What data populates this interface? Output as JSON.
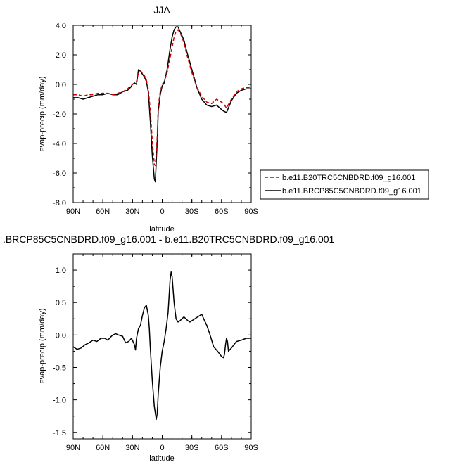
{
  "chart_data": [
    {
      "type": "line",
      "title": "JJA",
      "xlabel": "latitude",
      "ylabel": "evap-precip (mm/day)",
      "xlim": [
        90,
        -90
      ],
      "ylim": [
        -8.0,
        4.0
      ],
      "xticks": [
        90,
        60,
        30,
        0,
        -30,
        -60,
        -90
      ],
      "xtick_labels": [
        "90N",
        "60N",
        "30N",
        "0",
        "30S",
        "60S",
        "90S"
      ],
      "yticks": [
        -8,
        -6,
        -4,
        -2,
        0,
        2,
        4
      ],
      "ytick_labels": [
        "-8.0",
        "-6.0",
        "-4.0",
        "-2.0",
        "0.0",
        "2.0",
        "4.0"
      ],
      "legend_position": "right",
      "series": [
        {
          "name": "b.e11.B20TRC5CNBDRD.f09_g16.001",
          "color": "#cc0000",
          "style": "dashed",
          "x": [
            90,
            85,
            80,
            75,
            70,
            65,
            60,
            55,
            50,
            45,
            40,
            35,
            32,
            30,
            28,
            26,
            24,
            22,
            20,
            18,
            16,
            14,
            12,
            10,
            8,
            7,
            6,
            5,
            4,
            2,
            0,
            -2,
            -5,
            -8,
            -10,
            -12,
            -14,
            -16,
            -18,
            -20,
            -22,
            -25,
            -30,
            -35,
            -40,
            -45,
            -50,
            -55,
            -60,
            -62,
            -65,
            -70,
            -75,
            -80,
            -85,
            -90
          ],
          "y": [
            -0.7,
            -0.7,
            -0.8,
            -0.7,
            -0.7,
            -0.6,
            -0.6,
            -0.6,
            -0.7,
            -0.6,
            -0.5,
            -0.3,
            -0.1,
            0.0,
            0.1,
            0.2,
            0.8,
            0.9,
            0.8,
            0.6,
            0.3,
            -0.3,
            -1.8,
            -3.8,
            -5.4,
            -5.5,
            -4.6,
            -3.5,
            -1.5,
            -0.5,
            0.0,
            0.2,
            0.8,
            1.8,
            2.5,
            3.2,
            3.6,
            3.7,
            3.5,
            3.2,
            2.8,
            2.0,
            0.8,
            -0.2,
            -0.8,
            -1.2,
            -1.3,
            -1.0,
            -1.2,
            -1.3,
            -1.6,
            -1.0,
            -0.5,
            -0.3,
            -0.2,
            -0.2
          ]
        },
        {
          "name": "b.e11.BRCP85C5CNBDRD.f09_g16.001",
          "color": "#000000",
          "style": "solid",
          "x": [
            90,
            85,
            80,
            75,
            70,
            65,
            60,
            55,
            50,
            45,
            40,
            35,
            32,
            30,
            28,
            26,
            24,
            22,
            20,
            18,
            16,
            14,
            12,
            10,
            8,
            7,
            6,
            5,
            4,
            2,
            0,
            -2,
            -5,
            -8,
            -10,
            -12,
            -14,
            -16,
            -18,
            -20,
            -22,
            -25,
            -30,
            -35,
            -40,
            -45,
            -50,
            -55,
            -60,
            -62,
            -65,
            -70,
            -75,
            -80,
            -85,
            -90
          ],
          "y": [
            -0.9,
            -0.9,
            -1.0,
            -0.9,
            -0.8,
            -0.7,
            -0.7,
            -0.6,
            -0.7,
            -0.7,
            -0.5,
            -0.4,
            -0.2,
            0.0,
            0.1,
            0.0,
            1.0,
            0.9,
            0.7,
            0.5,
            0.2,
            -0.5,
            -2.5,
            -4.8,
            -6.4,
            -6.6,
            -5.2,
            -3.8,
            -1.8,
            -0.7,
            -0.1,
            0.1,
            1.0,
            2.4,
            3.2,
            3.7,
            3.9,
            3.9,
            3.6,
            3.3,
            3.0,
            2.2,
            1.0,
            -0.2,
            -1.0,
            -1.4,
            -1.5,
            -1.4,
            -1.7,
            -1.8,
            -1.9,
            -1.1,
            -0.6,
            -0.4,
            -0.3,
            -0.3
          ]
        }
      ]
    },
    {
      "type": "line",
      "title": ".BRCP85C5CNBDRD.f09_g16.001 - b.e11.B20TRC5CNBDRD.f09_g16.001",
      "xlabel": "latitude",
      "ylabel": "evap-precip (mm/day)",
      "xlim": [
        90,
        -90
      ],
      "ylim": [
        -1.6,
        1.25
      ],
      "xticks": [
        90,
        60,
        30,
        0,
        -30,
        -60,
        -90
      ],
      "xtick_labels": [
        "90N",
        "60N",
        "30N",
        "0",
        "30S",
        "60S",
        "90S"
      ],
      "yticks": [
        -1.5,
        -1.0,
        -0.5,
        0.0,
        0.5,
        1.0
      ],
      "ytick_labels": [
        "-1.5",
        "-1.0",
        "-0.5",
        "0.0",
        "0.5",
        "1.0"
      ],
      "series": [
        {
          "color": "#000000",
          "style": "solid",
          "x": [
            90,
            86,
            82,
            78,
            74,
            70,
            66,
            62,
            58,
            55,
            52,
            50,
            47,
            44,
            40,
            37,
            34,
            31,
            28,
            27,
            26,
            24,
            22,
            20,
            18,
            16,
            14,
            13,
            12,
            10,
            8,
            6,
            5,
            4,
            2,
            0,
            -2,
            -4,
            -6,
            -8,
            -9,
            -10,
            -12,
            -14,
            -16,
            -18,
            -20,
            -22,
            -24,
            -26,
            -28,
            -30,
            -33,
            -36,
            -38,
            -40,
            -42,
            -45,
            -48,
            -52,
            -56,
            -60,
            -62,
            -63,
            -64,
            -65,
            -66,
            -67,
            -70,
            -75,
            -80,
            -85,
            -90
          ],
          "y": [
            -0.18,
            -0.22,
            -0.2,
            -0.15,
            -0.12,
            -0.08,
            -0.1,
            -0.05,
            -0.05,
            -0.08,
            -0.03,
            0.0,
            0.02,
            0.0,
            -0.02,
            -0.12,
            -0.1,
            -0.05,
            -0.15,
            -0.23,
            -0.05,
            0.1,
            0.15,
            0.3,
            0.42,
            0.46,
            0.3,
            0.1,
            -0.2,
            -0.7,
            -1.1,
            -1.3,
            -1.2,
            -0.9,
            -0.5,
            -0.25,
            -0.1,
            0.1,
            0.35,
            0.85,
            0.97,
            0.9,
            0.5,
            0.25,
            0.2,
            0.22,
            0.25,
            0.28,
            0.25,
            0.22,
            0.2,
            0.22,
            0.25,
            0.28,
            0.3,
            0.32,
            0.25,
            0.15,
            0.02,
            -0.18,
            -0.25,
            -0.33,
            -0.35,
            -0.3,
            -0.15,
            -0.05,
            -0.1,
            -0.25,
            -0.2,
            -0.1,
            -0.08,
            -0.05,
            -0.05
          ]
        }
      ]
    }
  ]
}
